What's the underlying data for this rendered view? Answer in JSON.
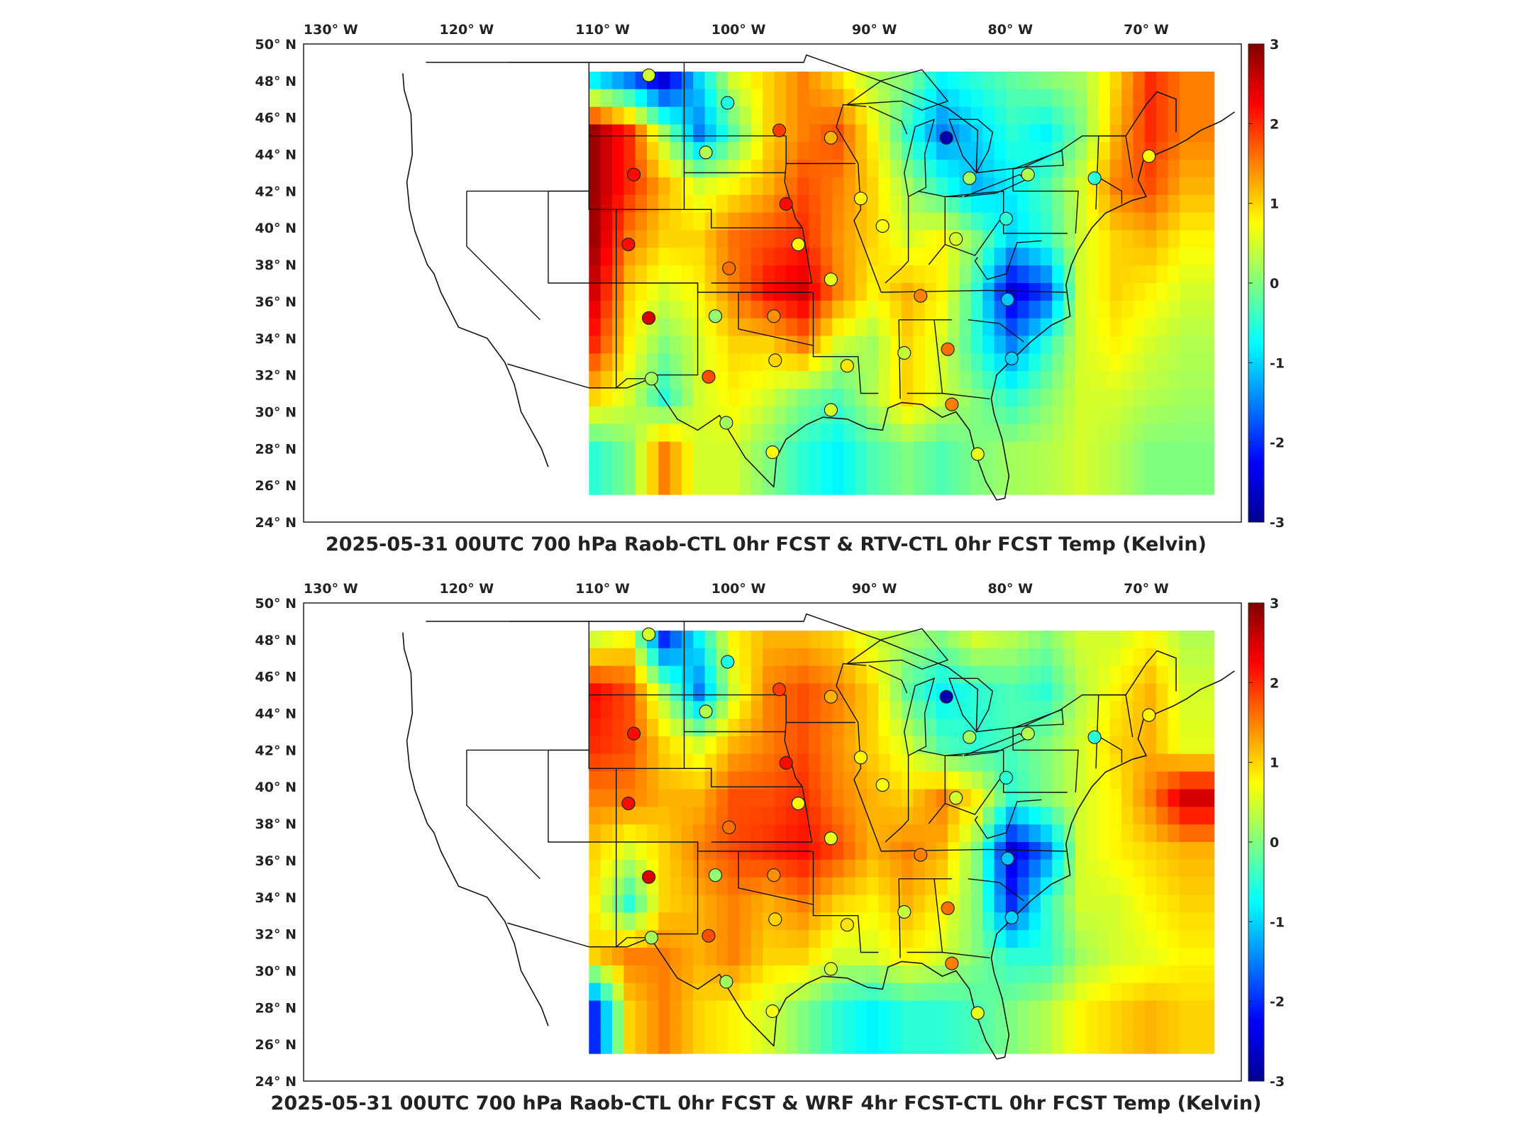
{
  "colormap": [
    "#00008f",
    "#0000ff",
    "#0080ff",
    "#00ffff",
    "#80ff80",
    "#ffff00",
    "#ff8000",
    "#ff0000",
    "#800000"
  ],
  "panels": [
    {
      "title": "2025-05-31 00UTC 700 hPa Raob-CTL 0hr FCST & RTV-CTL 0hr FCST Temp (Kelvin)",
      "lon_labels": [
        "130° W",
        "120° W",
        "110° W",
        "100° W",
        "90° W",
        "80° W",
        "70° W"
      ],
      "lat_labels": [
        "50° N",
        "48° N",
        "46° N",
        "44° N",
        "42° N",
        "40° N",
        "38° N",
        "36° N",
        "34° N",
        "32° N",
        "30° N",
        "28° N",
        "26° N",
        "24° N"
      ],
      "colorbar_ticks": [
        "3",
        "2",
        "1",
        "0",
        "-1",
        "-2",
        "-3"
      ],
      "colorbar_range": [
        -3,
        3
      ],
      "field": [
        [
          -0.8,
          -1.5,
          -2.5,
          -1.0,
          0.5,
          1.0,
          1.5,
          1.0,
          0.3,
          0.0,
          -0.8,
          -0.5,
          -0.2,
          0.0,
          0.2,
          1.0,
          2.0,
          1.5
        ],
        [
          2.8,
          2.0,
          0.2,
          -1.5,
          -0.2,
          1.0,
          1.5,
          1.8,
          0.8,
          -0.5,
          -1.5,
          -1.0,
          -0.5,
          -0.8,
          0.0,
          1.2,
          2.0,
          1.5
        ],
        [
          2.8,
          2.0,
          1.2,
          0.5,
          0.8,
          1.2,
          1.8,
          1.5,
          1.0,
          0.2,
          -0.5,
          -1.2,
          -0.8,
          -0.3,
          0.5,
          1.5,
          1.8,
          1.2
        ],
        [
          2.8,
          1.5,
          1.0,
          1.0,
          1.6,
          1.8,
          2.0,
          1.4,
          1.0,
          0.5,
          0.8,
          0.0,
          -1.0,
          -0.5,
          0.5,
          1.0,
          1.2,
          0.8
        ],
        [
          2.5,
          1.0,
          0.5,
          0.8,
          1.5,
          2.2,
          2.5,
          1.5,
          0.8,
          1.2,
          0.8,
          -0.5,
          -2.5,
          -1.8,
          0.5,
          1.0,
          0.8,
          0.5
        ],
        [
          2.0,
          0.8,
          0.0,
          0.5,
          1.0,
          1.0,
          1.5,
          0.5,
          0.2,
          1.0,
          0.5,
          -0.5,
          -1.5,
          -0.5,
          0.5,
          0.8,
          0.5,
          0.3
        ],
        [
          1.0,
          0.5,
          -0.5,
          0.5,
          0.8,
          0.5,
          0.0,
          -0.3,
          0.3,
          1.0,
          0.5,
          0.0,
          -0.5,
          0.0,
          0.5,
          0.5,
          0.3,
          0.2
        ],
        [
          -0.5,
          0.0,
          1.5,
          0.5,
          0.5,
          0.0,
          -0.5,
          -0.8,
          -0.3,
          0.0,
          -0.3,
          0.0,
          0.2,
          0.3,
          0.5,
          0.3,
          0.0,
          0.0
        ]
      ],
      "stations": [
        {
          "lon": -106.6,
          "lat": 48.3,
          "value": 0.5
        },
        {
          "lon": -100.8,
          "lat": 46.8,
          "value": -0.6
        },
        {
          "lon": -97.0,
          "lat": 45.3,
          "value": 1.9
        },
        {
          "lon": -93.2,
          "lat": 44.9,
          "value": 1.2
        },
        {
          "lon": -84.7,
          "lat": 44.9,
          "value": -2.8
        },
        {
          "lon": -102.4,
          "lat": 44.1,
          "value": 0.3
        },
        {
          "lon": -107.7,
          "lat": 42.9,
          "value": 2.2
        },
        {
          "lon": -96.5,
          "lat": 41.3,
          "value": 2.2
        },
        {
          "lon": -91.0,
          "lat": 41.6,
          "value": 0.8
        },
        {
          "lon": -83.0,
          "lat": 42.7,
          "value": 0.2
        },
        {
          "lon": -78.7,
          "lat": 42.9,
          "value": 0.3
        },
        {
          "lon": -73.8,
          "lat": 42.7,
          "value": -0.5
        },
        {
          "lon": -69.8,
          "lat": 43.9,
          "value": 0.8
        },
        {
          "lon": -89.4,
          "lat": 40.1,
          "value": 0.7
        },
        {
          "lon": -84.0,
          "lat": 39.4,
          "value": 0.5
        },
        {
          "lon": -80.3,
          "lat": 40.5,
          "value": -0.5
        },
        {
          "lon": -95.6,
          "lat": 39.1,
          "value": 0.8
        },
        {
          "lon": -100.7,
          "lat": 37.8,
          "value": 1.6
        },
        {
          "lon": -108.1,
          "lat": 39.1,
          "value": 2.2
        },
        {
          "lon": -93.2,
          "lat": 37.2,
          "value": 0.6
        },
        {
          "lon": -86.6,
          "lat": 36.3,
          "value": 1.5
        },
        {
          "lon": -80.2,
          "lat": 36.1,
          "value": -1.1
        },
        {
          "lon": -101.7,
          "lat": 35.2,
          "value": 0.1
        },
        {
          "lon": -97.4,
          "lat": 35.2,
          "value": 1.4
        },
        {
          "lon": -106.6,
          "lat": 35.1,
          "value": 2.5
        },
        {
          "lon": -97.3,
          "lat": 32.8,
          "value": 1.0
        },
        {
          "lon": -92.0,
          "lat": 32.5,
          "value": 0.9
        },
        {
          "lon": -87.8,
          "lat": 33.2,
          "value": 0.4
        },
        {
          "lon": -84.6,
          "lat": 33.4,
          "value": 1.6
        },
        {
          "lon": -79.9,
          "lat": 32.9,
          "value": -1.0
        },
        {
          "lon": -106.4,
          "lat": 31.8,
          "value": 0.2
        },
        {
          "lon": -102.2,
          "lat": 31.9,
          "value": 1.8
        },
        {
          "lon": -93.2,
          "lat": 30.1,
          "value": 0.5
        },
        {
          "lon": -84.3,
          "lat": 30.4,
          "value": 1.5
        },
        {
          "lon": -100.9,
          "lat": 29.4,
          "value": 0.2
        },
        {
          "lon": -97.5,
          "lat": 27.8,
          "value": 0.7
        },
        {
          "lon": -82.4,
          "lat": 27.7,
          "value": 0.6
        }
      ]
    },
    {
      "title": "2025-05-31 00UTC 700 hPa Raob-CTL 0hr FCST & WRF 4hr FCST-CTL 0hr FCST Temp (Kelvin)",
      "lon_labels": [
        "130° W",
        "120° W",
        "110° W",
        "100° W",
        "90° W",
        "80° W",
        "70° W"
      ],
      "lat_labels": [
        "50° N",
        "48° N",
        "46° N",
        "44° N",
        "42° N",
        "40° N",
        "38° N",
        "36° N",
        "34° N",
        "32° N",
        "30° N",
        "28° N",
        "26° N",
        "24° N"
      ],
      "colorbar_ticks": [
        "3",
        "2",
        "1",
        "0",
        "-1",
        "-2",
        "-3"
      ],
      "colorbar_range": [
        -3,
        3
      ],
      "field": [
        [
          0.5,
          0.8,
          -2.0,
          -0.8,
          0.8,
          1.2,
          1.2,
          1.0,
          0.5,
          0.2,
          0.0,
          0.5,
          0.3,
          0.0,
          0.5,
          0.5,
          0.8,
          0.3
        ],
        [
          2.2,
          1.8,
          0.2,
          -1.5,
          0.5,
          1.5,
          1.8,
          1.5,
          1.0,
          -0.2,
          -0.8,
          -0.5,
          -0.3,
          -0.5,
          0.3,
          0.8,
          1.2,
          0.5
        ],
        [
          2.0,
          1.8,
          1.0,
          0.5,
          1.2,
          1.5,
          1.8,
          1.4,
          1.0,
          0.5,
          -0.3,
          -0.5,
          -0.3,
          0.0,
          0.5,
          1.0,
          1.2,
          0.6
        ],
        [
          1.5,
          1.5,
          1.2,
          1.2,
          1.8,
          1.8,
          2.0,
          1.5,
          1.2,
          1.0,
          1.5,
          0.8,
          -0.5,
          0.0,
          0.5,
          0.8,
          1.5,
          2.5
        ],
        [
          1.0,
          0.5,
          1.0,
          1.5,
          1.8,
          2.0,
          2.2,
          1.8,
          1.2,
          1.5,
          1.2,
          0.0,
          -2.5,
          -1.5,
          0.5,
          0.8,
          1.0,
          1.2
        ],
        [
          0.8,
          -0.5,
          1.0,
          1.2,
          1.5,
          1.2,
          1.5,
          1.0,
          0.8,
          1.2,
          0.8,
          0.0,
          -2.0,
          -0.5,
          0.5,
          0.5,
          0.8,
          1.0
        ],
        [
          1.0,
          1.5,
          1.5,
          1.2,
          1.5,
          1.0,
          1.0,
          0.5,
          0.5,
          0.8,
          0.5,
          0.0,
          -0.5,
          -0.5,
          0.2,
          0.5,
          0.6,
          0.8
        ],
        [
          -2.0,
          1.0,
          1.5,
          1.0,
          0.8,
          0.5,
          0.0,
          -0.5,
          -0.8,
          -0.5,
          -0.5,
          -0.3,
          0.0,
          0.3,
          0.8,
          1.0,
          1.2,
          1.0
        ]
      ],
      "stations": [
        {
          "lon": -106.6,
          "lat": 48.3,
          "value": 0.5
        },
        {
          "lon": -100.8,
          "lat": 46.8,
          "value": -0.6
        },
        {
          "lon": -97.0,
          "lat": 45.3,
          "value": 1.9
        },
        {
          "lon": -93.2,
          "lat": 44.9,
          "value": 1.2
        },
        {
          "lon": -84.7,
          "lat": 44.9,
          "value": -2.8
        },
        {
          "lon": -102.4,
          "lat": 44.1,
          "value": 0.3
        },
        {
          "lon": -107.7,
          "lat": 42.9,
          "value": 2.2
        },
        {
          "lon": -96.5,
          "lat": 41.3,
          "value": 2.2
        },
        {
          "lon": -91.0,
          "lat": 41.6,
          "value": 0.8
        },
        {
          "lon": -83.0,
          "lat": 42.7,
          "value": 0.2
        },
        {
          "lon": -78.7,
          "lat": 42.9,
          "value": 0.3
        },
        {
          "lon": -73.8,
          "lat": 42.7,
          "value": -0.5
        },
        {
          "lon": -69.8,
          "lat": 43.9,
          "value": 0.8
        },
        {
          "lon": -89.4,
          "lat": 40.1,
          "value": 0.7
        },
        {
          "lon": -84.0,
          "lat": 39.4,
          "value": 0.5
        },
        {
          "lon": -80.3,
          "lat": 40.5,
          "value": -0.5
        },
        {
          "lon": -95.6,
          "lat": 39.1,
          "value": 0.8
        },
        {
          "lon": -100.7,
          "lat": 37.8,
          "value": 1.6
        },
        {
          "lon": -108.1,
          "lat": 39.1,
          "value": 2.2
        },
        {
          "lon": -93.2,
          "lat": 37.2,
          "value": 0.6
        },
        {
          "lon": -86.6,
          "lat": 36.3,
          "value": 1.5
        },
        {
          "lon": -80.2,
          "lat": 36.1,
          "value": -1.1
        },
        {
          "lon": -101.7,
          "lat": 35.2,
          "value": 0.1
        },
        {
          "lon": -97.4,
          "lat": 35.2,
          "value": 1.4
        },
        {
          "lon": -106.6,
          "lat": 35.1,
          "value": 2.5
        },
        {
          "lon": -97.3,
          "lat": 32.8,
          "value": 1.0
        },
        {
          "lon": -92.0,
          "lat": 32.5,
          "value": 0.9
        },
        {
          "lon": -87.8,
          "lat": 33.2,
          "value": 0.4
        },
        {
          "lon": -84.6,
          "lat": 33.4,
          "value": 1.6
        },
        {
          "lon": -79.9,
          "lat": 32.9,
          "value": -1.0
        },
        {
          "lon": -106.4,
          "lat": 31.8,
          "value": 0.2
        },
        {
          "lon": -102.2,
          "lat": 31.9,
          "value": 1.8
        },
        {
          "lon": -93.2,
          "lat": 30.1,
          "value": 0.5
        },
        {
          "lon": -84.3,
          "lat": 30.4,
          "value": 1.5
        },
        {
          "lon": -100.9,
          "lat": 29.4,
          "value": 0.2
        },
        {
          "lon": -97.5,
          "lat": 27.8,
          "value": 0.7
        },
        {
          "lon": -82.4,
          "lat": 27.7,
          "value": 0.6
        }
      ]
    }
  ],
  "coastline": [
    [
      -124.7,
      48.4
    ],
    [
      -124.6,
      47.5
    ],
    [
      -124.1,
      46.2
    ],
    [
      -124.0,
      44.0
    ],
    [
      -124.4,
      42.5
    ],
    [
      -124.2,
      41.0
    ],
    [
      -123.8,
      39.8
    ],
    [
      -122.9,
      38.0
    ],
    [
      -122.4,
      37.5
    ],
    [
      -121.9,
      36.5
    ],
    [
      -120.6,
      34.6
    ],
    [
      -118.5,
      34.0
    ],
    [
      -117.2,
      32.7
    ],
    [
      -116.5,
      31.5
    ],
    [
      -116.0,
      30.0
    ],
    [
      -114.5,
      28.0
    ],
    [
      -114.0,
      27.0
    ]
  ],
  "gulf_coast": [
    [
      -97.4,
      25.9
    ],
    [
      -97.2,
      27.5
    ],
    [
      -96.5,
      28.5
    ],
    [
      -95.0,
      29.3
    ],
    [
      -93.8,
      29.7
    ],
    [
      -92.0,
      29.6
    ],
    [
      -90.5,
      29.1
    ],
    [
      -89.4,
      29.0
    ],
    [
      -89.0,
      30.2
    ],
    [
      -88.0,
      30.5
    ],
    [
      -86.5,
      30.4
    ],
    [
      -85.0,
      29.7
    ],
    [
      -84.0,
      30.0
    ],
    [
      -83.0,
      29.0
    ],
    [
      -82.6,
      27.8
    ],
    [
      -81.8,
      26.2
    ],
    [
      -81.0,
      25.2
    ],
    [
      -80.4,
      25.3
    ],
    [
      -80.1,
      26.5
    ],
    [
      -80.6,
      28.5
    ],
    [
      -81.2,
      29.9
    ],
    [
      -81.4,
      30.7
    ],
    [
      -81.0,
      32.0
    ],
    [
      -79.9,
      32.8
    ],
    [
      -78.5,
      33.8
    ],
    [
      -77.0,
      34.7
    ],
    [
      -75.6,
      35.2
    ],
    [
      -75.9,
      36.9
    ],
    [
      -75.5,
      38.0
    ],
    [
      -75.0,
      38.8
    ],
    [
      -74.0,
      40.0
    ],
    [
      -73.0,
      40.8
    ],
    [
      -71.0,
      41.5
    ],
    [
      -70.0,
      41.7
    ],
    [
      -70.6,
      42.6
    ],
    [
      -70.2,
      43.7
    ],
    [
      -68.0,
      44.4
    ],
    [
      -67.0,
      44.8
    ],
    [
      -66.0,
      45.3
    ],
    [
      -64.5,
      45.8
    ],
    [
      -63.5,
      46.3
    ]
  ]
}
